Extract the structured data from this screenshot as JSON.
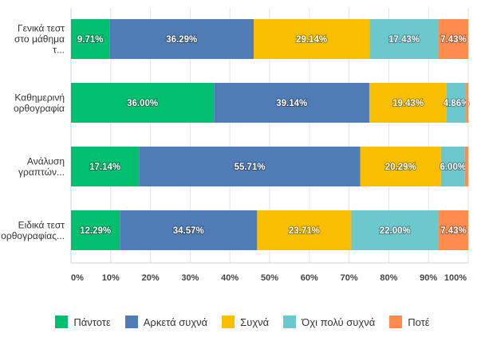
{
  "chart_data": {
    "type": "bar",
    "orientation": "horizontal",
    "stacked": true,
    "categories": [
      [
        "Γενικά τεστ",
        "στο μάθημα",
        "τ..."
      ],
      [
        "Καθημερινή",
        "ορθογραφία"
      ],
      [
        "Ανάλυση",
        "γραπτών..."
      ],
      [
        "Ειδικά τεστ",
        "ορθογραφίας..."
      ]
    ],
    "series": [
      {
        "name": "Πάντοτε",
        "color": "#00BF6F",
        "values": [
          9.71,
          36.0,
          17.14,
          12.29
        ]
      },
      {
        "name": "Αρκετά συχνά",
        "color": "#507CB6",
        "values": [
          36.29,
          39.14,
          55.71,
          34.57
        ]
      },
      {
        "name": "Συχνά",
        "color": "#F9BE00",
        "values": [
          29.14,
          19.43,
          20.29,
          23.71
        ]
      },
      {
        "name": "Όχι πολύ συχνά",
        "color": "#6BC8CD",
        "values": [
          17.43,
          4.86,
          6.0,
          22.0
        ]
      },
      {
        "name": "Ποτέ",
        "color": "#FF8B4F",
        "values": [
          7.43,
          0.57,
          0.86,
          7.43
        ]
      }
    ],
    "x_ticks": [
      "0%",
      "10%",
      "20%",
      "30%",
      "40%",
      "50%",
      "60%",
      "70%",
      "80%",
      "90%",
      "100%"
    ],
    "xlim": [
      0,
      100
    ],
    "grid": true,
    "legend_position": "bottom"
  }
}
